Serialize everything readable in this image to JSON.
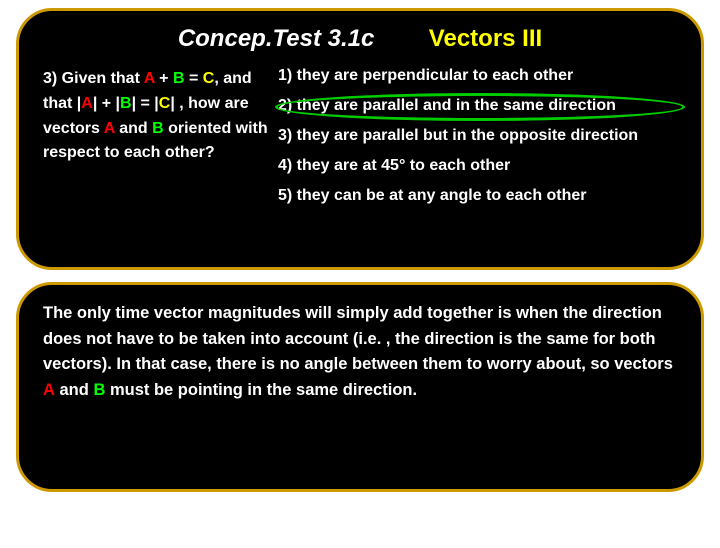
{
  "header": {
    "title_left": "Concep.Test 3.1c",
    "title_right": "Vectors III"
  },
  "question": {
    "prefix": "3) Given that ",
    "a1": "A",
    "plus1": " + ",
    "b1": "B",
    "eq1": " = ",
    "c1": "C",
    "mid1": ", and that |",
    "a2": "A",
    "mid2": "| + |",
    "b2": "B",
    "mid3": "| = |",
    "c2": "C",
    "mid4": "| , how are vectors ",
    "a3": "A",
    "and1": " and ",
    "b3": "B",
    "tail": " oriented with respect to each other?"
  },
  "options": {
    "o1": "1)  they are perpendicular to each other",
    "o2": "2)  they are parallel and in the same direction",
    "o3": "3)  they are parallel but in the opposite direction",
    "o4": "4)  they are at 45° to each other",
    "o5": "5)  they can be at any angle to each other"
  },
  "explanation": {
    "p1": "The only time vector magnitudes will simply add together is when the direction does not have to be taken into account (i.e. , the direction is the same for both vectors).  In that case, there is no angle between them to worry about, so vectors ",
    "a": "A",
    "p2": " and ",
    "b": "B",
    "p3": " must be pointing in the same direction."
  },
  "colors": {
    "accent_border": "#cc9900",
    "bg_panel": "#000000",
    "yellow": "#ffff00",
    "red": "#ff0000",
    "green": "#00ff00",
    "circle": "#00cc00"
  }
}
